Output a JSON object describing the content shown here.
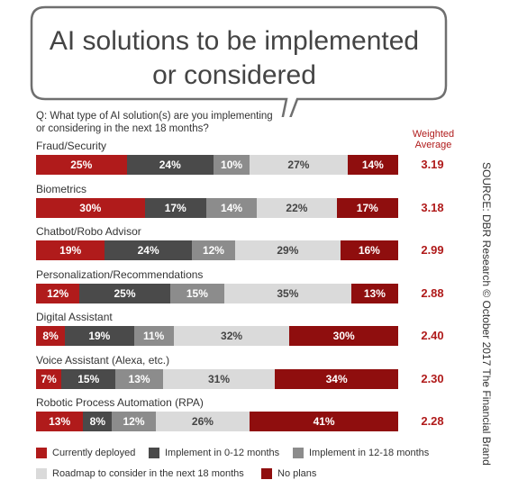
{
  "chart_data": {
    "type": "bar",
    "stacked": true,
    "orientation": "horizontal",
    "title": "AI solutions to be implemented or considered",
    "question": "Q: What type of AI solution(s) are you implementing\nor considering in the next 18 months?",
    "weighted_average_header": "Weighted\nAverage",
    "source": "SOURCE: DBR Research © October 2017 The Financial Brand",
    "categories": [
      "Fraud/Security",
      "Biometrics",
      "Chatbot/Robo Advisor",
      "Personalization/Recommendations",
      "Digital Assistant",
      "Voice Assistant (Alexa, etc.)",
      "Robotic Process Automation (RPA)"
    ],
    "series": [
      {
        "name": "Currently deployed",
        "color": "#b01b1b",
        "text_color": "#ffffff",
        "values": [
          25,
          30,
          19,
          12,
          8,
          7,
          13
        ]
      },
      {
        "name": "Implement in 0-12 months",
        "color": "#4a4a4a",
        "text_color": "#ffffff",
        "values": [
          24,
          17,
          24,
          25,
          19,
          15,
          8
        ]
      },
      {
        "name": "Implement in 12-18 months",
        "color": "#8c8c8c",
        "text_color": "#ffffff",
        "values": [
          10,
          14,
          12,
          15,
          11,
          13,
          12
        ]
      },
      {
        "name": "Roadmap to consider in the next 18 months",
        "color": "#dadada",
        "text_color": "#444444",
        "values": [
          27,
          22,
          29,
          35,
          32,
          31,
          26
        ]
      },
      {
        "name": "No plans",
        "color": "#8f0e0e",
        "text_color": "#ffffff",
        "values": [
          14,
          17,
          16,
          13,
          30,
          34,
          41
        ]
      }
    ],
    "weighted_average": [
      "3.19",
      "3.18",
      "2.99",
      "2.88",
      "2.40",
      "2.30",
      "2.28"
    ],
    "value_suffix": "%"
  }
}
